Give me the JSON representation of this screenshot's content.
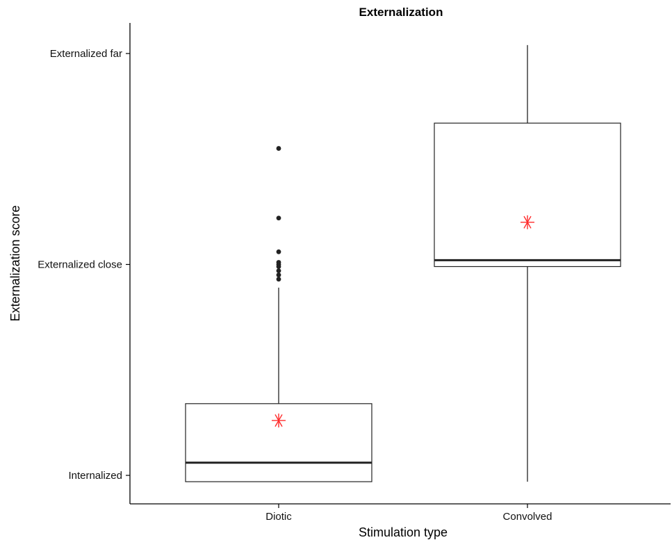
{
  "chart_data": {
    "type": "box",
    "title": "Externalization",
    "xlabel": "Stimulation type",
    "ylabel": "Externalization score",
    "y_ticks": [
      {
        "value": 1,
        "label": "Internalized"
      },
      {
        "value": 2,
        "label": "Externalized close"
      },
      {
        "value": 3,
        "label": "Externalized far"
      }
    ],
    "ylim": [
      0.95,
      3.15
    ],
    "categories": [
      "Diotic",
      "Convolved"
    ],
    "boxes": [
      {
        "category": "Diotic",
        "whisker_low": 0.97,
        "q1": 0.97,
        "median": 1.06,
        "q3": 1.34,
        "whisker_high": 1.89,
        "mean": 1.26,
        "outliers": [
          1.93,
          1.95,
          1.97,
          1.99,
          2.0,
          2.01,
          2.06,
          2.22,
          2.55
        ]
      },
      {
        "category": "Convolved",
        "whisker_low": 0.97,
        "q1": 1.99,
        "median": 2.02,
        "q3": 2.67,
        "whisker_high": 3.04,
        "mean": 2.2,
        "outliers": []
      }
    ],
    "mean_marker_color": "#ff2a2a"
  }
}
